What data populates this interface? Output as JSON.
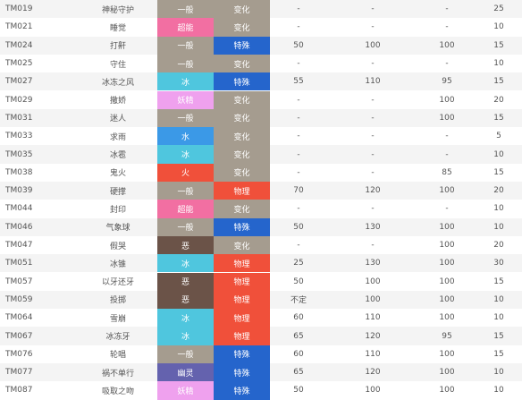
{
  "colors": {
    "type": {
      "一般": "#a59c8f",
      "超能": "#f26fa2",
      "冰": "#4fc6de",
      "妖精": "#efa1ee",
      "水": "#3b99e7",
      "火": "#f0503a",
      "恶": "#6b5348",
      "幽灵": "#6462ae"
    },
    "category": {
      "变化": "#a59c8f",
      "特殊": "#2565cc",
      "物理": "#f0503a"
    }
  },
  "rows": [
    {
      "tm": "TM019",
      "name": "神秘守护",
      "type": "一般",
      "category": "变化",
      "power": "-",
      "accuracy": "-",
      "pp": "-",
      "priority": "25"
    },
    {
      "tm": "TM021",
      "name": "睡觉",
      "type": "超能",
      "category": "变化",
      "power": "-",
      "accuracy": "-",
      "pp": "-",
      "priority": "10"
    },
    {
      "tm": "TM024",
      "name": "打鼾",
      "type": "一般",
      "category": "特殊",
      "power": "50",
      "accuracy": "100",
      "pp": "100",
      "priority": "15"
    },
    {
      "tm": "TM025",
      "name": "守住",
      "type": "一般",
      "category": "变化",
      "power": "-",
      "accuracy": "-",
      "pp": "-",
      "priority": "10"
    },
    {
      "tm": "TM027",
      "name": "冰冻之风",
      "type": "冰",
      "category": "特殊",
      "power": "55",
      "accuracy": "110",
      "pp": "95",
      "priority": "15"
    },
    {
      "tm": "TM029",
      "name": "撒娇",
      "type": "妖精",
      "category": "变化",
      "power": "-",
      "accuracy": "-",
      "pp": "100",
      "priority": "20"
    },
    {
      "tm": "TM031",
      "name": "迷人",
      "type": "一般",
      "category": "变化",
      "power": "-",
      "accuracy": "-",
      "pp": "100",
      "priority": "15"
    },
    {
      "tm": "TM033",
      "name": "求雨",
      "type": "水",
      "category": "变化",
      "power": "-",
      "accuracy": "-",
      "pp": "-",
      "priority": "5"
    },
    {
      "tm": "TM035",
      "name": "冰雹",
      "type": "冰",
      "category": "变化",
      "power": "-",
      "accuracy": "-",
      "pp": "-",
      "priority": "10"
    },
    {
      "tm": "TM038",
      "name": "鬼火",
      "type": "火",
      "category": "变化",
      "power": "-",
      "accuracy": "-",
      "pp": "85",
      "priority": "15"
    },
    {
      "tm": "TM039",
      "name": "硬撑",
      "type": "一般",
      "category": "物理",
      "power": "70",
      "accuracy": "120",
      "pp": "100",
      "priority": "20"
    },
    {
      "tm": "TM044",
      "name": "封印",
      "type": "超能",
      "category": "变化",
      "power": "-",
      "accuracy": "-",
      "pp": "-",
      "priority": "10"
    },
    {
      "tm": "TM046",
      "name": "气象球",
      "type": "一般",
      "category": "特殊",
      "power": "50",
      "accuracy": "130",
      "pp": "100",
      "priority": "10"
    },
    {
      "tm": "TM047",
      "name": "假哭",
      "type": "恶",
      "category": "变化",
      "power": "-",
      "accuracy": "-",
      "pp": "100",
      "priority": "20"
    },
    {
      "tm": "TM051",
      "name": "冰锥",
      "type": "冰",
      "category": "物理",
      "power": "25",
      "accuracy": "130",
      "pp": "100",
      "priority": "30"
    },
    {
      "tm": "TM057",
      "name": "以牙还牙",
      "type": "恶",
      "category": "物理",
      "power": "50",
      "accuracy": "100",
      "pp": "100",
      "priority": "15"
    },
    {
      "tm": "TM059",
      "name": "投掷",
      "type": "恶",
      "category": "物理",
      "power": "不定",
      "accuracy": "100",
      "pp": "100",
      "priority": "10"
    },
    {
      "tm": "TM064",
      "name": "雪崩",
      "type": "冰",
      "category": "物理",
      "power": "60",
      "accuracy": "110",
      "pp": "100",
      "priority": "10"
    },
    {
      "tm": "TM067",
      "name": "冰冻牙",
      "type": "冰",
      "category": "物理",
      "power": "65",
      "accuracy": "120",
      "pp": "95",
      "priority": "15"
    },
    {
      "tm": "TM076",
      "name": "轮唱",
      "type": "一般",
      "category": "特殊",
      "power": "60",
      "accuracy": "110",
      "pp": "100",
      "priority": "15"
    },
    {
      "tm": "TM077",
      "name": "祸不单行",
      "type": "幽灵",
      "category": "特殊",
      "power": "65",
      "accuracy": "120",
      "pp": "100",
      "priority": "10"
    },
    {
      "tm": "TM087",
      "name": "吸取之吻",
      "type": "妖精",
      "category": "特殊",
      "power": "50",
      "accuracy": "100",
      "pp": "100",
      "priority": "10"
    }
  ]
}
